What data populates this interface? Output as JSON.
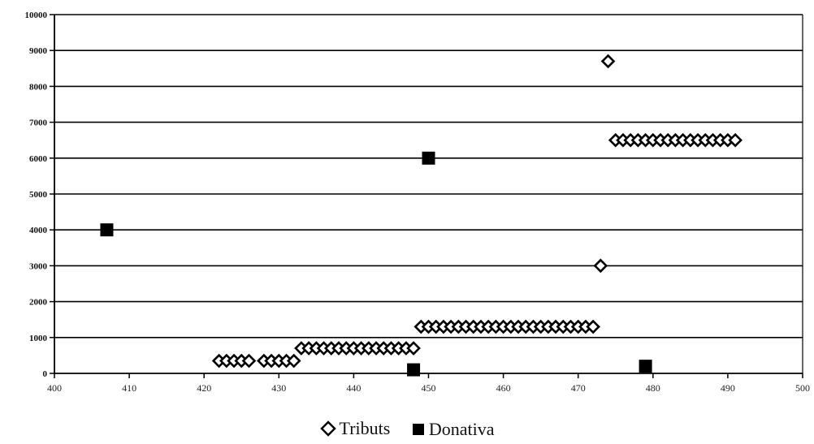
{
  "chart_data": {
    "type": "scatter",
    "title": "",
    "xlabel": "",
    "ylabel": "",
    "xlim": [
      400,
      500
    ],
    "ylim": [
      0,
      10000
    ],
    "x_ticks": [
      400,
      410,
      420,
      430,
      440,
      450,
      460,
      470,
      480,
      490,
      500
    ],
    "y_ticks": [
      0,
      1000,
      2000,
      3000,
      4000,
      5000,
      6000,
      7000,
      8000,
      9000,
      10000
    ],
    "grid": "horizontal",
    "legend_position": "bottom",
    "series": [
      {
        "name": "Tributs",
        "marker": "diamond-open",
        "color": "#000000",
        "points": [
          [
            422,
            350
          ],
          [
            423,
            350
          ],
          [
            424,
            350
          ],
          [
            425,
            350
          ],
          [
            426,
            350
          ],
          [
            428,
            350
          ],
          [
            429,
            350
          ],
          [
            430,
            350
          ],
          [
            431,
            350
          ],
          [
            432,
            350
          ],
          [
            433,
            700
          ],
          [
            434,
            700
          ],
          [
            435,
            700
          ],
          [
            436,
            700
          ],
          [
            437,
            700
          ],
          [
            438,
            700
          ],
          [
            439,
            700
          ],
          [
            440,
            700
          ],
          [
            441,
            700
          ],
          [
            442,
            700
          ],
          [
            443,
            700
          ],
          [
            444,
            700
          ],
          [
            445,
            700
          ],
          [
            446,
            700
          ],
          [
            447,
            700
          ],
          [
            448,
            700
          ],
          [
            449,
            1300
          ],
          [
            450,
            1300
          ],
          [
            451,
            1300
          ],
          [
            452,
            1300
          ],
          [
            453,
            1300
          ],
          [
            454,
            1300
          ],
          [
            455,
            1300
          ],
          [
            456,
            1300
          ],
          [
            457,
            1300
          ],
          [
            458,
            1300
          ],
          [
            459,
            1300
          ],
          [
            460,
            1300
          ],
          [
            461,
            1300
          ],
          [
            462,
            1300
          ],
          [
            463,
            1300
          ],
          [
            464,
            1300
          ],
          [
            465,
            1300
          ],
          [
            466,
            1300
          ],
          [
            467,
            1300
          ],
          [
            468,
            1300
          ],
          [
            469,
            1300
          ],
          [
            470,
            1300
          ],
          [
            471,
            1300
          ],
          [
            472,
            1300
          ],
          [
            473,
            3000
          ],
          [
            474,
            8700
          ],
          [
            475,
            6500
          ],
          [
            476,
            6500
          ],
          [
            477,
            6500
          ],
          [
            478,
            6500
          ],
          [
            479,
            6500
          ],
          [
            480,
            6500
          ],
          [
            481,
            6500
          ],
          [
            482,
            6500
          ],
          [
            483,
            6500
          ],
          [
            484,
            6500
          ],
          [
            485,
            6500
          ],
          [
            486,
            6500
          ],
          [
            487,
            6500
          ],
          [
            488,
            6500
          ],
          [
            489,
            6500
          ],
          [
            490,
            6500
          ],
          [
            491,
            6500
          ]
        ]
      },
      {
        "name": "Donativa",
        "marker": "square-filled",
        "color": "#000000",
        "points": [
          [
            407,
            4000
          ],
          [
            448,
            100
          ],
          [
            450,
            6000
          ],
          [
            479,
            200
          ]
        ]
      }
    ]
  }
}
